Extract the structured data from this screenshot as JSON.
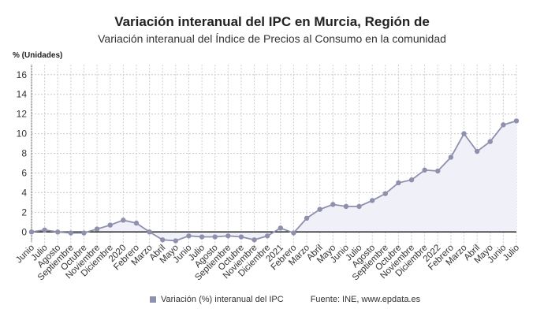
{
  "chart_data": {
    "type": "line",
    "title": "Variación interanual del IPC en Murcia, Región de",
    "subtitle": "Variación interanual del Índice de Precios al Consumo en la comunidad",
    "ylabel": "% (Unidades)",
    "xlabel": "",
    "categories": [
      "Junio",
      "Julio",
      "Agosto",
      "Septiembre",
      "Octubre",
      "Noviembre",
      "Diciembre",
      "2020",
      "Febrero",
      "Marzo",
      "Abril",
      "Mayo",
      "Junio",
      "Julio",
      "Agosto",
      "Septiembre",
      "Octubre",
      "Noviembre",
      "Diciembre",
      "2021",
      "Febrero",
      "Marzo",
      "Abril",
      "Mayo",
      "Junio",
      "Julio",
      "Agosto",
      "Septiembre",
      "Octubre",
      "Noviembre",
      "Diciembre",
      "2022",
      "Febrero",
      "Marzo",
      "Abril",
      "Mayo",
      "Junio",
      "Julio"
    ],
    "series": [
      {
        "name": "Variación (%) interanual del IPC",
        "values": [
          0.0,
          0.2,
          0.0,
          -0.1,
          -0.1,
          0.3,
          0.7,
          1.2,
          0.9,
          0.0,
          -0.8,
          -0.9,
          -0.4,
          -0.5,
          -0.5,
          -0.4,
          -0.5,
          -0.8,
          -0.4,
          0.4,
          -0.1,
          1.4,
          2.3,
          2.8,
          2.6,
          2.6,
          3.2,
          3.9,
          5.0,
          5.3,
          6.3,
          6.2,
          7.6,
          10.0,
          8.2,
          9.2,
          10.9,
          11.3
        ]
      }
    ],
    "yticks": [
      0,
      2,
      4,
      6,
      8,
      10,
      12,
      14,
      16
    ],
    "ylim": [
      -1,
      17
    ],
    "grid": true,
    "legend_position": "bottom",
    "colors": {
      "line": "#8f8fae",
      "fill": "#f0f0f8",
      "zero_line": "#222222",
      "grid": "#cccccc"
    }
  },
  "source": "Fuente: INE, www.epdata.es"
}
